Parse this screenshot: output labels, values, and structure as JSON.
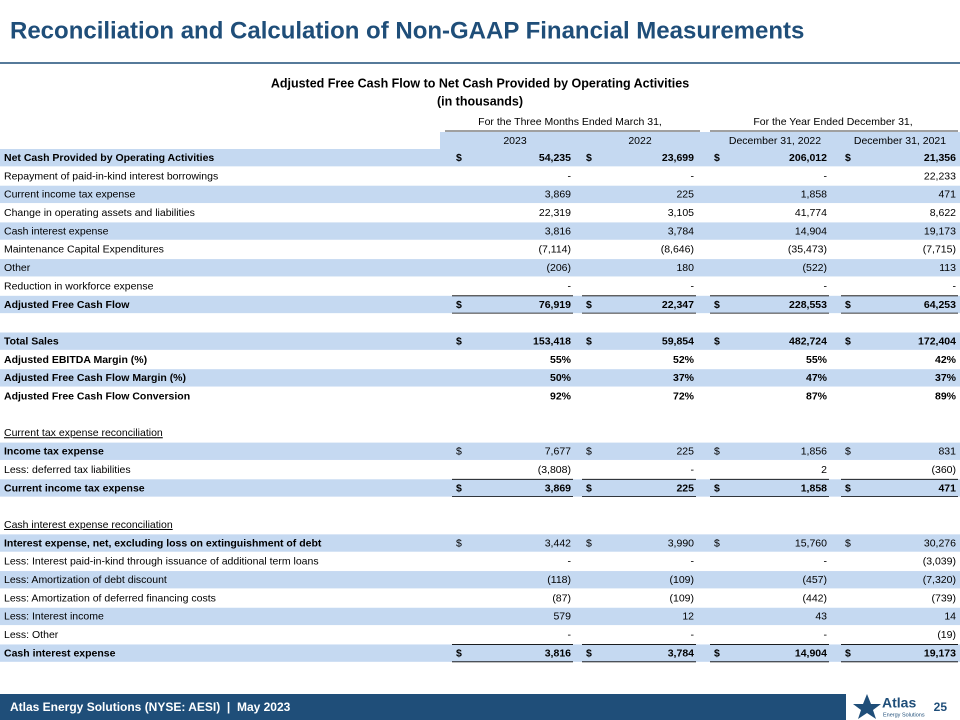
{
  "header": {
    "title": "Reconciliation and Calculation of Non-GAAP Financial Measurements"
  },
  "table": {
    "title": "Adjusted Free Cash Flow to Net Cash Provided by Operating Activities",
    "subtitle": "(in thousands)",
    "column_groups": [
      "For the Three Months Ended March 31,",
      "For the Year Ended December 31,"
    ],
    "columns": [
      "2023",
      "2022",
      "December 31, 2022",
      "December 31, 2021"
    ],
    "sections": [
      {
        "rows": [
          {
            "label": "Net Cash Provided by Operating Activities",
            "currency": "$",
            "values": [
              "54,235",
              "23,699",
              "206,012",
              "21,356"
            ]
          },
          {
            "label": "Repayment of paid-in-kind interest borrowings",
            "values": [
              "-",
              "-",
              "-",
              "22,233"
            ]
          },
          {
            "label": "Current income tax expense",
            "values": [
              "3,869",
              "225",
              "1,858",
              "471"
            ]
          },
          {
            "label": "Change in operating assets and liabilities",
            "values": [
              "22,319",
              "3,105",
              "41,774",
              "8,622"
            ]
          },
          {
            "label": "Cash interest expense",
            "values": [
              "3,816",
              "3,784",
              "14,904",
              "19,173"
            ]
          },
          {
            "label": "Maintenance Capital Expenditures",
            "values": [
              "(7,114)",
              "(8,646)",
              "(35,473)",
              "(7,715)"
            ]
          },
          {
            "label": "Other",
            "values": [
              "(206)",
              "180",
              "(522)",
              "113"
            ]
          },
          {
            "label": "Reduction in workforce expense",
            "values": [
              "-",
              "-",
              "-",
              "-"
            ]
          },
          {
            "label": "Adjusted Free Cash Flow",
            "currency": "$",
            "values": [
              "76,919",
              "22,347",
              "228,553",
              "64,253"
            ]
          }
        ]
      },
      {
        "rows": [
          {
            "label": "Total Sales",
            "currency": "$",
            "values": [
              "153,418",
              "59,854",
              "482,724",
              "172,404"
            ]
          },
          {
            "label": "Adjusted EBITDA Margin (%)",
            "values": [
              "55%",
              "52%",
              "55%",
              "42%"
            ]
          },
          {
            "label": "Adjusted Free Cash Flow Margin (%)",
            "values": [
              "50%",
              "37%",
              "47%",
              "37%"
            ]
          },
          {
            "label": "Adjusted Free Cash Flow Conversion",
            "values": [
              "92%",
              "72%",
              "87%",
              "89%"
            ]
          }
        ]
      },
      {
        "heading": "Current tax expense reconciliation",
        "rows": [
          {
            "label": "Income tax expense",
            "currency": "$",
            "values": [
              "7,677",
              "225",
              "1,856",
              "831"
            ]
          },
          {
            "label": "Less: deferred tax liabilities",
            "values": [
              "(3,808)",
              "-",
              "2",
              "(360)"
            ]
          },
          {
            "label": "Current income tax expense",
            "currency": "$",
            "values": [
              "3,869",
              "225",
              "1,858",
              "471"
            ]
          }
        ]
      },
      {
        "heading": "Cash interest expense reconciliation",
        "rows": [
          {
            "label": "Interest expense, net, excluding loss on extinguishment of debt",
            "currency": "$",
            "values": [
              "3,442",
              "3,990",
              "15,760",
              "30,276"
            ]
          },
          {
            "label": "Less: Interest paid-in-kind through issuance of additional term loans",
            "values": [
              "-",
              "-",
              "-",
              "(3,039)"
            ]
          },
          {
            "label": "Less: Amortization of debt discount",
            "values": [
              "(118)",
              "(109)",
              "(457)",
              "(7,320)"
            ]
          },
          {
            "label": "Less: Amortization of deferred financing costs",
            "values": [
              "(87)",
              "(109)",
              "(442)",
              "(739)"
            ]
          },
          {
            "label": "Less: Interest income",
            "values": [
              "579",
              "12",
              "43",
              "14"
            ]
          },
          {
            "label": "Less: Other",
            "values": [
              "-",
              "-",
              "-",
              "(19)"
            ]
          },
          {
            "label": "Cash interest expense",
            "currency": "$",
            "values": [
              "3,816",
              "3,784",
              "14,904",
              "19,173"
            ]
          }
        ]
      }
    ]
  },
  "footer": {
    "company": "Atlas Energy Solutions (NYSE: AESI)  |  May 2023",
    "logo_name": "Atlas",
    "logo_tagline": "Energy Solutions",
    "page": "25"
  }
}
